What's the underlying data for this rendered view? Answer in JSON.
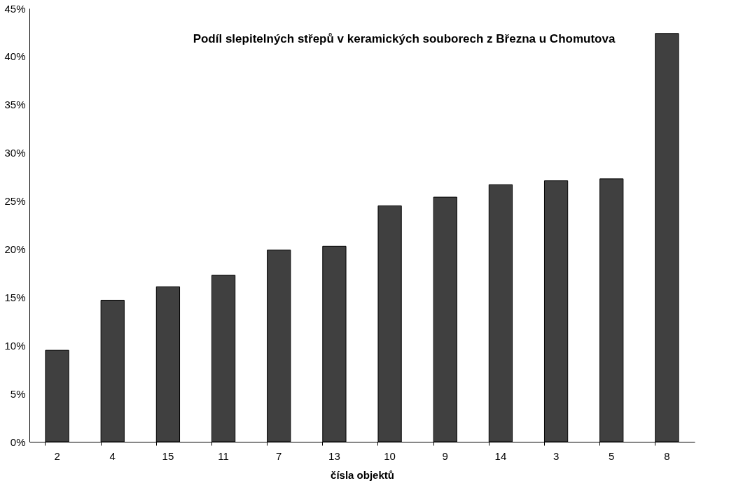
{
  "chart_data": {
    "type": "bar",
    "title": "Podíl slepitelných střepů v keramických souborech z Března u Chomutova",
    "xlabel": "čísla objektů",
    "categories": [
      "2",
      "4",
      "15",
      "11",
      "7",
      "13",
      "10",
      "9",
      "14",
      "3",
      "5",
      "8"
    ],
    "values": [
      9.5,
      14.7,
      16.1,
      17.3,
      19.9,
      20.3,
      24.5,
      25.4,
      26.7,
      27.1,
      27.3,
      42.4
    ],
    "color": "#404040",
    "ylim": [
      0,
      45
    ],
    "yticks": [
      {
        "value": 0,
        "label": "0%"
      },
      {
        "value": 5,
        "label": "5%"
      },
      {
        "value": 10,
        "label": "10%"
      },
      {
        "value": 15,
        "label": "15%"
      },
      {
        "value": 20,
        "label": "20%"
      },
      {
        "value": 25,
        "label": "25%"
      },
      {
        "value": 30,
        "label": "30%"
      },
      {
        "value": 35,
        "label": "35%"
      },
      {
        "value": 40,
        "label": "40%"
      },
      {
        "value": 45,
        "label": "45%"
      }
    ],
    "grid": false
  }
}
